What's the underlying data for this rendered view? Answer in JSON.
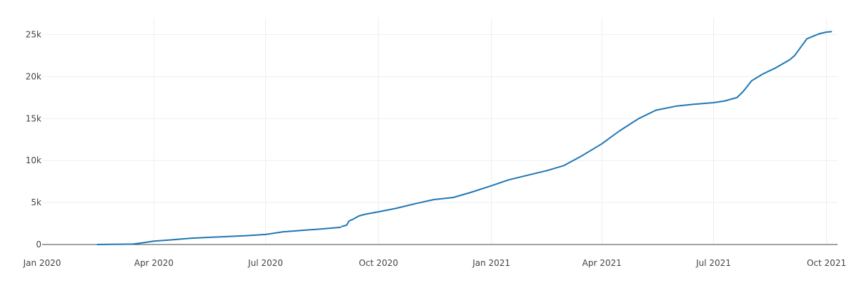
{
  "chart_data": {
    "type": "line",
    "title": "",
    "xlabel": "",
    "ylabel": "",
    "x_type": "date",
    "xlim": [
      "2020-01-01",
      "2021-10-10"
    ],
    "ylim": [
      0,
      27000
    ],
    "grid": true,
    "x_ticks": [
      {
        "date": "2020-01-01",
        "label": "Jan 2020"
      },
      {
        "date": "2020-04-01",
        "label": "Apr 2020"
      },
      {
        "date": "2020-07-01",
        "label": "Jul 2020"
      },
      {
        "date": "2020-10-01",
        "label": "Oct 2020"
      },
      {
        "date": "2021-01-01",
        "label": "Jan 2021"
      },
      {
        "date": "2021-04-01",
        "label": "Apr 2021"
      },
      {
        "date": "2021-07-01",
        "label": "Jul 2021"
      },
      {
        "date": "2021-10-01",
        "label": "Oct 2021"
      }
    ],
    "y_ticks": [
      {
        "value": 0,
        "label": "0"
      },
      {
        "value": 5000,
        "label": "5k"
      },
      {
        "value": 10000,
        "label": "10k"
      },
      {
        "value": 15000,
        "label": "15k"
      },
      {
        "value": 20000,
        "label": "20k"
      },
      {
        "value": 25000,
        "label": "25k"
      }
    ],
    "colors": {
      "line": "#1f77b4",
      "grid": "#eeeeee",
      "zeroline": "#444444"
    },
    "series": [
      {
        "segments": [
          {
            "x": [
              "2020-02-15",
              "2020-02-25",
              "2020-03-05",
              "2020-03-15",
              "2020-03-25",
              "2020-04-01",
              "2020-04-15",
              "2020-05-01",
              "2020-05-15",
              "2020-06-01",
              "2020-06-15",
              "2020-07-01",
              "2020-07-15",
              "2020-08-01",
              "2020-08-15",
              "2020-08-31"
            ],
            "y": [
              0,
              20,
              30,
              50,
              250,
              400,
              550,
              750,
              850,
              950,
              1050,
              1200,
              1500,
              1700,
              1850,
              2050
            ]
          },
          {
            "x": [
              "2020-09-01",
              "2020-09-05",
              "2020-09-07",
              "2020-09-10",
              "2020-09-15",
              "2020-09-20",
              "2020-10-01",
              "2020-10-15",
              "2020-11-01",
              "2020-11-15",
              "2020-12-01",
              "2020-12-15",
              "2021-01-01",
              "2021-01-15",
              "2021-02-01",
              "2021-02-15",
              "2021-03-01",
              "2021-03-15",
              "2021-04-01",
              "2021-04-15",
              "2021-05-01",
              "2021-05-15",
              "2021-06-01",
              "2021-06-15",
              "2021-07-01",
              "2021-07-10",
              "2021-07-20",
              "2021-07-25",
              "2021-08-01",
              "2021-08-10",
              "2021-08-20",
              "2021-09-01",
              "2021-09-05",
              "2021-09-10",
              "2021-09-15",
              "2021-09-25",
              "2021-10-01",
              "2021-10-05"
            ],
            "y": [
              2150,
              2300,
              2800,
              3000,
              3400,
              3600,
              3900,
              4300,
              4900,
              5350,
              5600,
              6200,
              7000,
              7700,
              8300,
              8800,
              9400,
              10500,
              12000,
              13500,
              15000,
              16000,
              16500,
              16700,
              16900,
              17100,
              17500,
              18200,
              19500,
              20300,
              21000,
              22000,
              22500,
              23500,
              24500,
              25100,
              25300,
              25350
            ]
          }
        ]
      }
    ]
  }
}
